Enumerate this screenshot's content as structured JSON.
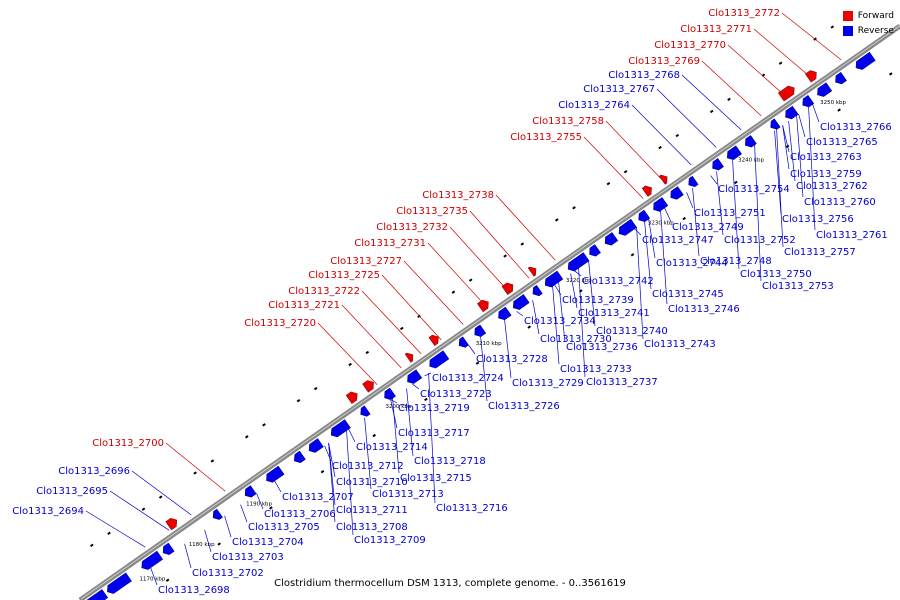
{
  "legend": {
    "forward_label": "Forward",
    "reverse_label": "Reverse",
    "forward_color": "#ee0000",
    "reverse_color": "#0000ee"
  },
  "caption": "Clostridium thermocellum DSM 1313, complete genome. - 0..3561619",
  "track_color": "#888888",
  "kbp_ticks": [
    "1170 kbp",
    "1180 kbp",
    "1190 kbp",
    "3200 kbp",
    "3210 kbp",
    "3220 kbp",
    "3230 kbp",
    "3240 kbp",
    "3250 kbp"
  ],
  "genes": [
    {
      "label": "Clo1313_2772",
      "strand": "forward"
    },
    {
      "label": "Clo1313_2771",
      "strand": "forward"
    },
    {
      "label": "Clo1313_2770",
      "strand": "forward"
    },
    {
      "label": "Clo1313_2769",
      "strand": "forward"
    },
    {
      "label": "Clo1313_2768",
      "strand": "reverse"
    },
    {
      "label": "Clo1313_2767",
      "strand": "reverse"
    },
    {
      "label": "Clo1313_2764",
      "strand": "reverse"
    },
    {
      "label": "Clo1313_2758",
      "strand": "forward"
    },
    {
      "label": "Clo1313_2755",
      "strand": "forward"
    },
    {
      "label": "Clo1313_2738",
      "strand": "forward"
    },
    {
      "label": "Clo1313_2735",
      "strand": "forward"
    },
    {
      "label": "Clo1313_2732",
      "strand": "forward"
    },
    {
      "label": "Clo1313_2731",
      "strand": "forward"
    },
    {
      "label": "Clo1313_2727",
      "strand": "forward"
    },
    {
      "label": "Clo1313_2725",
      "strand": "forward"
    },
    {
      "label": "Clo1313_2722",
      "strand": "forward"
    },
    {
      "label": "Clo1313_2721",
      "strand": "forward"
    },
    {
      "label": "Clo1313_2720",
      "strand": "forward"
    },
    {
      "label": "Clo1313_2700",
      "strand": "forward"
    },
    {
      "label": "Clo1313_2696",
      "strand": "reverse"
    },
    {
      "label": "Clo1313_2695",
      "strand": "reverse"
    },
    {
      "label": "Clo1313_2694",
      "strand": "reverse"
    },
    {
      "label": "Clo1313_2766",
      "strand": "reverse"
    },
    {
      "label": "Clo1313_2765",
      "strand": "reverse"
    },
    {
      "label": "Clo1313_2763",
      "strand": "reverse"
    },
    {
      "label": "Clo1313_2759",
      "strand": "reverse"
    },
    {
      "label": "Clo1313_2762",
      "strand": "reverse"
    },
    {
      "label": "Clo1313_2754",
      "strand": "reverse"
    },
    {
      "label": "Clo1313_2760",
      "strand": "reverse"
    },
    {
      "label": "Clo1313_2751",
      "strand": "reverse"
    },
    {
      "label": "Clo1313_2756",
      "strand": "reverse"
    },
    {
      "label": "Clo1313_2749",
      "strand": "reverse"
    },
    {
      "label": "Clo1313_2761",
      "strand": "reverse"
    },
    {
      "label": "Clo1313_2747",
      "strand": "reverse"
    },
    {
      "label": "Clo1313_2752",
      "strand": "reverse"
    },
    {
      "label": "Clo1313_2757",
      "strand": "reverse"
    },
    {
      "label": "Clo1313_2744",
      "strand": "reverse"
    },
    {
      "label": "Clo1313_2748",
      "strand": "reverse"
    },
    {
      "label": "Clo1313_2742",
      "strand": "reverse"
    },
    {
      "label": "Clo1313_2750",
      "strand": "reverse"
    },
    {
      "label": "Clo1313_2753",
      "strand": "reverse"
    },
    {
      "label": "Clo1313_2745",
      "strand": "reverse"
    },
    {
      "label": "Clo1313_2739",
      "strand": "reverse"
    },
    {
      "label": "Clo1313_2746",
      "strand": "reverse"
    },
    {
      "label": "Clo1313_2741",
      "strand": "reverse"
    },
    {
      "label": "Clo1313_2734",
      "strand": "reverse"
    },
    {
      "label": "Clo1313_2740",
      "strand": "reverse"
    },
    {
      "label": "Clo1313_2730",
      "strand": "reverse"
    },
    {
      "label": "Clo1313_2743",
      "strand": "reverse"
    },
    {
      "label": "Clo1313_2736",
      "strand": "reverse"
    },
    {
      "label": "Clo1313_2728",
      "strand": "reverse"
    },
    {
      "label": "Clo1313_2733",
      "strand": "reverse"
    },
    {
      "label": "Clo1313_2724",
      "strand": "reverse"
    },
    {
      "label": "Clo1313_2729",
      "strand": "reverse"
    },
    {
      "label": "Clo1313_2737",
      "strand": "reverse"
    },
    {
      "label": "Clo1313_2723",
      "strand": "reverse"
    },
    {
      "label": "Clo1313_2719",
      "strand": "reverse"
    },
    {
      "label": "Clo1313_2726",
      "strand": "reverse"
    },
    {
      "label": "Clo1313_2717",
      "strand": "reverse"
    },
    {
      "label": "Clo1313_2714",
      "strand": "reverse"
    },
    {
      "label": "Clo1313_2718",
      "strand": "reverse"
    },
    {
      "label": "Clo1313_2712",
      "strand": "reverse"
    },
    {
      "label": "Clo1313_2715",
      "strand": "reverse"
    },
    {
      "label": "Clo1313_2710",
      "strand": "reverse"
    },
    {
      "label": "Clo1313_2713",
      "strand": "reverse"
    },
    {
      "label": "Clo1313_2707",
      "strand": "reverse"
    },
    {
      "label": "Clo1313_2716",
      "strand": "reverse"
    },
    {
      "label": "Clo1313_2711",
      "strand": "reverse"
    },
    {
      "label": "Clo1313_2706",
      "strand": "reverse"
    },
    {
      "label": "Clo1313_2705",
      "strand": "reverse"
    },
    {
      "label": "Clo1313_2708",
      "strand": "reverse"
    },
    {
      "label": "Clo1313_2704",
      "strand": "reverse"
    },
    {
      "label": "Clo1313_2709",
      "strand": "reverse"
    },
    {
      "label": "Clo1313_2703",
      "strand": "reverse"
    },
    {
      "label": "Clo1313_2702",
      "strand": "reverse"
    },
    {
      "label": "Clo1313_2698",
      "strand": "reverse"
    }
  ]
}
